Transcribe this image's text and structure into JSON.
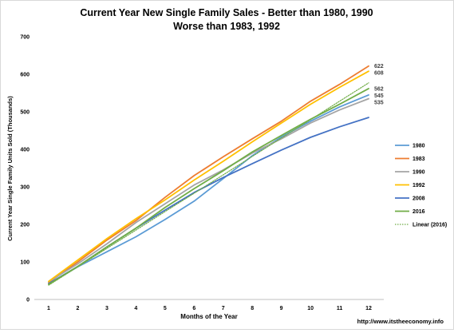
{
  "chart_data": {
    "type": "line",
    "title": "Current Year New Single Family Sales - Better than 1980, 1990",
    "subtitle": "Worse than 1983, 1992",
    "xlabel": "Months of the Year",
    "ylabel": "Current Year Single Family Units Sold (Thousands)",
    "x": [
      1,
      2,
      3,
      4,
      5,
      6,
      7,
      8,
      9,
      10,
      11,
      12
    ],
    "x_ticks": [
      "1",
      "2",
      "3",
      "4",
      "5",
      "6",
      "7",
      "8",
      "9",
      "10",
      "11",
      "12"
    ],
    "ylim": [
      0,
      700
    ],
    "y_ticks": [
      "0",
      "100",
      "200",
      "300",
      "400",
      "500",
      "600",
      "700"
    ],
    "grid": false,
    "legend_position": "right",
    "series": [
      {
        "name": "1980",
        "color": "#5b9bd5",
        "dash": false,
        "values": [
          42,
          87,
          127,
          167,
          213,
          262,
          322,
          383,
          433,
          475,
          513,
          545
        ]
      },
      {
        "name": "1983",
        "color": "#ed7d31",
        "dash": false,
        "values": [
          45,
          100,
          158,
          210,
          272,
          330,
          380,
          428,
          475,
          528,
          573,
          622
        ]
      },
      {
        "name": "1990",
        "color": "#a5a5a5",
        "dash": false,
        "values": [
          47,
          95,
          148,
          205,
          255,
          305,
          345,
          390,
          428,
          470,
          505,
          535
        ]
      },
      {
        "name": "1992",
        "color": "#ffc000",
        "dash": false,
        "values": [
          48,
          105,
          162,
          215,
          265,
          318,
          368,
          420,
          470,
          520,
          565,
          608
        ]
      },
      {
        "name": "2008",
        "color": "#4472c4",
        "dash": false,
        "values": [
          42,
          88,
          140,
          190,
          238,
          285,
          325,
          362,
          398,
          432,
          460,
          485
        ]
      },
      {
        "name": "2016",
        "color": "#70ad47",
        "dash": false,
        "values": [
          40,
          88,
          140,
          190,
          245,
          295,
          343,
          393,
          437,
          480,
          520,
          562
        ]
      },
      {
        "name": "Linear (2016)",
        "color": "#70ad47",
        "dash": true,
        "values": [
          38,
          87,
          136,
          185,
          234,
          283,
          332,
          381,
          430,
          479,
          528,
          577
        ]
      }
    ],
    "end_labels": [
      {
        "text": "622",
        "value": 622
      },
      {
        "text": "608",
        "value": 608
      },
      {
        "text": "562",
        "value": 562
      },
      {
        "text": "545",
        "value": 545
      },
      {
        "text": "535",
        "value": 535
      }
    ]
  },
  "footer": {
    "source_url": "http://www.itstheeconomy.info"
  }
}
